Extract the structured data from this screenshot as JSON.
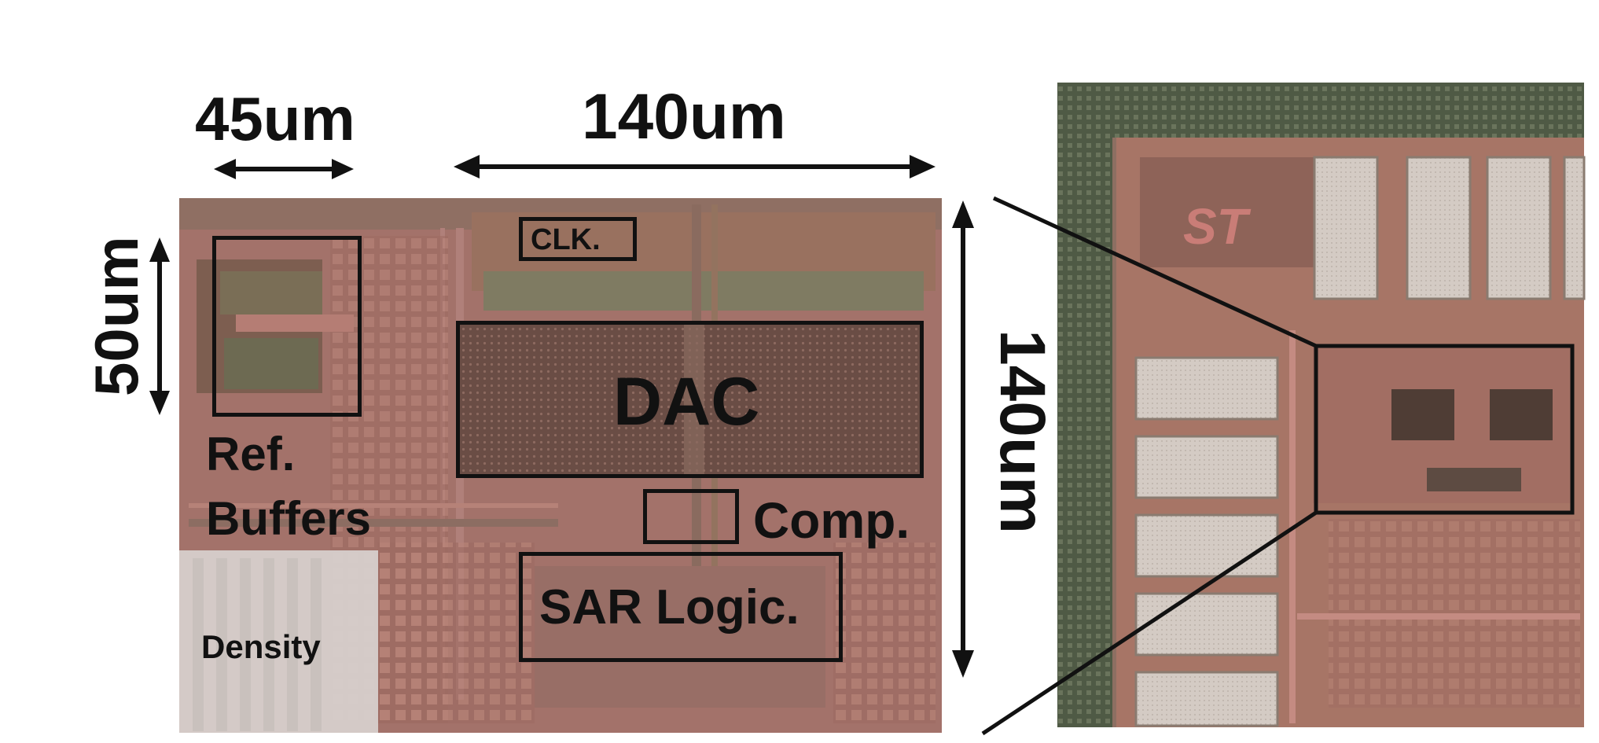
{
  "dimensions": {
    "ref_width": "45um",
    "dac_width": "140um",
    "ref_height": "50um",
    "die_height": "140um"
  },
  "blocks": {
    "clk": "CLK.",
    "dac": "DAC",
    "comp": "Comp.",
    "sar": "SAR Logic.",
    "ref_line1": "Ref.",
    "ref_line2": "Buffers",
    "density": "Density"
  },
  "logo": "ST",
  "colors": {
    "copper": "#a5716a",
    "die_dark": "#6e5048",
    "pad": "#d8cfc8",
    "ink": "#111111"
  }
}
